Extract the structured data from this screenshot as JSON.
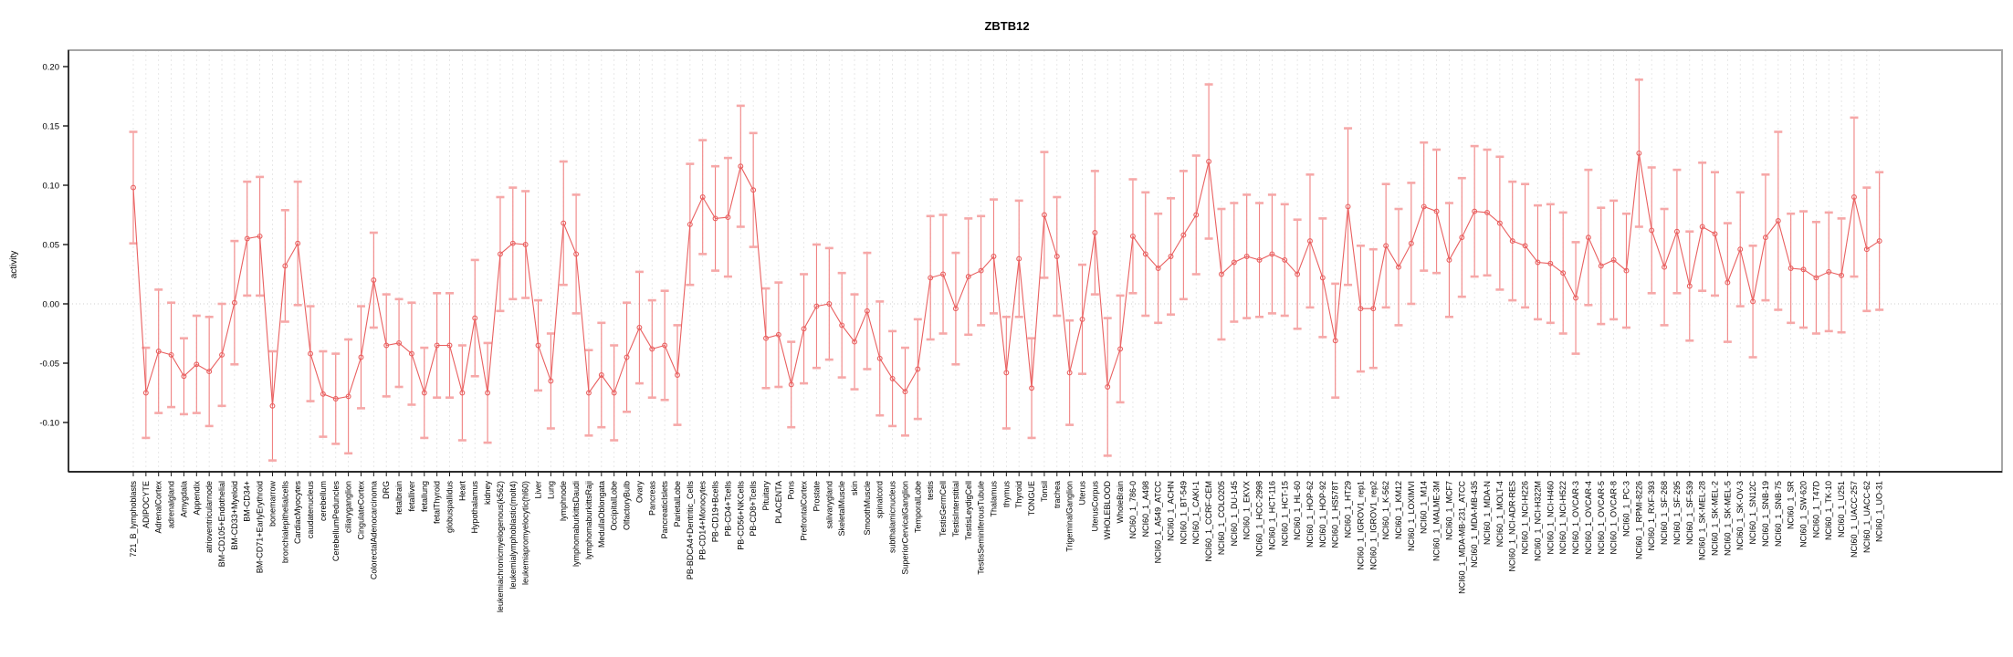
{
  "title": "ZBTB12",
  "ylabel": "activity",
  "colors": {
    "series": "#e96060",
    "errorbar": "#f08282",
    "errorcap": "#f6a8a8",
    "grid": "#e2e2e2",
    "zeroline": "#cfcfcf",
    "box": "#a6a6a6",
    "axis": "#1a1a1a"
  },
  "chart_data": {
    "type": "line",
    "title": "ZBTB12",
    "xlabel": "",
    "ylabel": "activity",
    "ylim": [
      -0.1415,
      0.214
    ],
    "yticks": [
      -0.1,
      -0.05,
      0.0,
      0.05,
      0.1,
      0.15,
      0.2
    ],
    "grid": "vertical dashed per category, dotted zero line",
    "legend_position": "none",
    "marker": "open-circle",
    "error_bars": true,
    "categories": [
      "721_B_lymphoblasts",
      "ADIPOCYTE",
      "AdrenalCortex",
      "adrenalgland",
      "Amygdala",
      "Appendix",
      "atrioventricularnode",
      "BM-CD105+Endothelial",
      "BM-CD33+Myeloid",
      "BM-CD34+",
      "BM-CD71+EarlyErythroid",
      "bonemarrow",
      "bronchialepithelialcells",
      "CardiacMyocytes",
      "caudatenucleus",
      "cerebellum",
      "CerebellumPeduncles",
      "ciliaryganglion",
      "CingulateCortex",
      "ColorectalAdenocarcinoma",
      "DRG",
      "fetalbrain",
      "fetalliver",
      "fetallung",
      "fetalThyroid",
      "globuspallidus",
      "Heart",
      "Hypothalamus",
      "kidney",
      "leukemiachronicmyelogenous(k562)",
      "leukemialymphoblastic(molt4)",
      "leukemiapromyelocytic(hl60)",
      "Liver",
      "Lung",
      "lymphnode",
      "lymphomaburkittsDaudi",
      "lymphomaburkittsRaji",
      "MedullaOblongata",
      "OccipitalLobe",
      "OlfactoryBulb",
      "Ovary",
      "Pancreas",
      "PancreaticIslets",
      "ParietalLobe",
      "PB-BDCA4+Dentritic_Cells",
      "PB-CD14+Monocytes",
      "PB-CD19+Bcells",
      "PB-CD4+Tcells",
      "PB-CD56+NKCells",
      "PB-CD8+Tcells",
      "Pituitary",
      "PLACENTA",
      "Pons",
      "PrefrontalCortex",
      "Prostate",
      "salivarygland",
      "SkeletalMuscle",
      "skin",
      "SmoothMuscle",
      "spinalcord",
      "subthalamicnucleus",
      "SuperiorCervicalGanglion",
      "TemporalLobe",
      "testis",
      "TestisGermCell",
      "TestisInterstitial",
      "TestisLeydigCell",
      "TestisSeminiferousTubule",
      "Thalamus",
      "thymus",
      "Thyroid",
      "TONGUE",
      "Tonsil",
      "trachea",
      "TrigeminalGanglion",
      "Uterus",
      "UterusCorpus",
      "WHOLEBLOOD",
      "WholeBrain",
      "NCI60_1_786-0",
      "NCI60_1_A498",
      "NCI60_1_A549_ATCC",
      "NCI60_1_ACHN",
      "NCI60_1_BT-549",
      "NCI60_1_CAKI-1",
      "NCI60_1_CCRF-CEM",
      "NCI60_1_COLO205",
      "NCI60_1_DU-145",
      "NCI60_1_EKVX",
      "NCI60_1_HCC-2998",
      "NCI60_1_HCT-116",
      "NCI60_1_HCT-15",
      "NCI60_1_HL-60",
      "NCI60_1_HOP-62",
      "NCI60_1_HOP-92",
      "NCI60_1_HS578T",
      "NCI60_1_HT29",
      "NCI60_1_IGROV1_rep1",
      "NCI60_1_IGROV1_rep2",
      "NCI60_1_K-562",
      "NCI60_1_KM12",
      "NCI60_1_LOXIMVI",
      "NCI60_1_M14",
      "NCI60_1_MALME-3M",
      "NCI60_1_MCF7",
      "NCI60_1_MDA-MB-231_ATCC",
      "NCI60_1_MDA-MB-435",
      "NCI60_1_MDA-N",
      "NCI60_1_MOLT-4",
      "NCI60_1_NCI-ADR-RES",
      "NCI60_1_NCI-H226",
      "NCI60_1_NCI-H322M",
      "NCI60_1_NCI-H460",
      "NCI60_1_NCI-H522",
      "NCI60_1_OVCAR-3",
      "NCI60_1_OVCAR-4",
      "NCI60_1_OVCAR-5",
      "NCI60_1_OVCAR-8",
      "NCI60_1_PC-3",
      "NCI60_1_RPMI-8226",
      "NCI60_1_RXF-393",
      "NCI60_1_SF-268",
      "NCI60_1_SF-295",
      "NCI60_1_SF-539",
      "NCI60_1_SK-MEL-28",
      "NCI60_1_SK-MEL-2",
      "NCI60_1_SK-MEL-5",
      "NCI60_1_SK-OV-3",
      "NCI60_1_SN12C",
      "NCI60_1_SNB-19",
      "NCI60_1_SNB-75",
      "NCI60_1_SR",
      "NCI60_1_SW-620",
      "NCI60_1_T47D",
      "NCI60_1_TK-10",
      "NCI60_1_U251",
      "NCI60_1_UACC-257",
      "NCI60_1_UACC-62",
      "NCI60_1_UO-31"
    ],
    "values": [
      0.098,
      -0.075,
      -0.04,
      -0.043,
      -0.061,
      -0.051,
      -0.057,
      -0.043,
      0.001,
      0.055,
      0.057,
      -0.086,
      0.032,
      0.051,
      -0.042,
      -0.076,
      -0.08,
      -0.078,
      -0.045,
      0.02,
      -0.035,
      -0.033,
      -0.042,
      -0.075,
      -0.035,
      -0.035,
      -0.075,
      -0.012,
      -0.075,
      0.042,
      0.051,
      0.05,
      -0.035,
      -0.065,
      0.068,
      0.042,
      -0.075,
      -0.06,
      -0.075,
      -0.045,
      -0.02,
      -0.038,
      -0.035,
      -0.06,
      0.067,
      0.09,
      0.072,
      0.073,
      0.116,
      0.096,
      -0.029,
      -0.026,
      -0.068,
      -0.021,
      -0.002,
      0.0,
      -0.018,
      -0.032,
      -0.006,
      -0.046,
      -0.063,
      -0.074,
      -0.055,
      0.022,
      0.025,
      -0.004,
      0.023,
      0.028,
      0.04,
      -0.058,
      0.038,
      -0.071,
      0.075,
      0.04,
      -0.058,
      -0.013,
      0.06,
      -0.07,
      -0.038,
      0.057,
      0.042,
      0.03,
      0.04,
      0.058,
      0.075,
      0.12,
      0.025,
      0.035,
      0.04,
      0.037,
      0.042,
      0.037,
      0.025,
      0.053,
      0.022,
      -0.031,
      0.082,
      -0.004,
      -0.004,
      0.049,
      0.031,
      0.051,
      0.082,
      0.078,
      0.037,
      0.056,
      0.078,
      0.077,
      0.068,
      0.053,
      0.049,
      0.035,
      0.034,
      0.026,
      0.005,
      0.056,
      0.032,
      0.037,
      0.028,
      0.127,
      0.062,
      0.031,
      0.061,
      0.015,
      0.065,
      0.059,
      0.018,
      0.046,
      0.002,
      0.056,
      0.07,
      0.03,
      0.029,
      0.022,
      0.027,
      0.024,
      0.09,
      0.046,
      0.053
    ],
    "errors": [
      0.047,
      0.038,
      0.052,
      0.044,
      0.032,
      0.041,
      0.046,
      0.043,
      0.052,
      0.048,
      0.05,
      0.046,
      0.047,
      0.052,
      0.04,
      0.036,
      0.038,
      0.048,
      0.043,
      0.04,
      0.043,
      0.037,
      0.043,
      0.038,
      0.044,
      0.044,
      0.04,
      0.049,
      0.042,
      0.048,
      0.047,
      0.045,
      0.038,
      0.04,
      0.052,
      0.05,
      0.036,
      0.044,
      0.04,
      0.046,
      0.047,
      0.041,
      0.046,
      0.042,
      0.051,
      0.048,
      0.044,
      0.05,
      0.051,
      0.048,
      0.042,
      0.044,
      0.036,
      0.046,
      0.052,
      0.047,
      0.044,
      0.04,
      0.049,
      0.048,
      0.04,
      0.037,
      0.042,
      0.052,
      0.05,
      0.047,
      0.049,
      0.046,
      0.048,
      0.047,
      0.049,
      0.042,
      0.053,
      0.05,
      0.044,
      0.046,
      0.052,
      0.058,
      0.045,
      0.048,
      0.052,
      0.046,
      0.049,
      0.054,
      0.05,
      0.065,
      0.055,
      0.05,
      0.052,
      0.048,
      0.05,
      0.047,
      0.046,
      0.056,
      0.05,
      0.048,
      0.066,
      0.053,
      0.05,
      0.052,
      0.049,
      0.051,
      0.054,
      0.052,
      0.048,
      0.05,
      0.055,
      0.053,
      0.056,
      0.05,
      0.052,
      0.048,
      0.05,
      0.051,
      0.047,
      0.057,
      0.049,
      0.05,
      0.048,
      0.062,
      0.053,
      0.049,
      0.052,
      0.046,
      0.054,
      0.052,
      0.05,
      0.048,
      0.047,
      0.053,
      0.075,
      0.046,
      0.049,
      0.047,
      0.05,
      0.048,
      0.067,
      0.052,
      0.058
    ]
  }
}
